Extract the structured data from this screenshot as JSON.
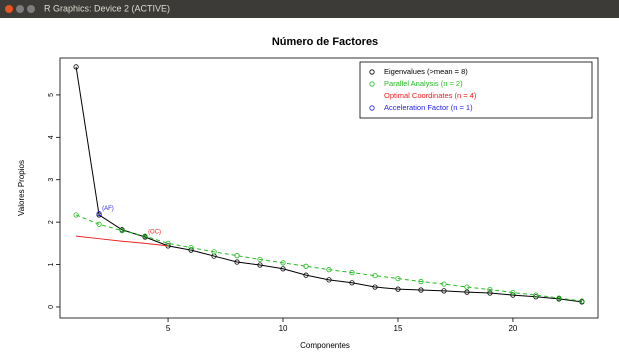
{
  "window_title": "R Graphics: Device 2 (ACTIVE)",
  "chart_data": {
    "type": "line",
    "title": "Número de Factores",
    "xlabel": "Componentes",
    "ylabel": "Valores Propios",
    "x": [
      1,
      2,
      3,
      4,
      5,
      6,
      7,
      8,
      9,
      10,
      11,
      12,
      13,
      14,
      15,
      16,
      17,
      18,
      19,
      20,
      21,
      22,
      23
    ],
    "series": [
      {
        "name": "Eigenvalues (>mean = 8)",
        "color": "#000000",
        "linestyle": "solid",
        "marker": true,
        "values": [
          5.66,
          2.17,
          1.82,
          1.65,
          1.44,
          1.34,
          1.2,
          1.06,
          0.99,
          0.9,
          0.75,
          0.64,
          0.57,
          0.47,
          0.42,
          0.4,
          0.38,
          0.35,
          0.33,
          0.28,
          0.24,
          0.19,
          0.12
        ]
      },
      {
        "name": "Parallel Analysis (n = 2)",
        "color": "#22bb22",
        "linestyle": "dashed",
        "marker": true,
        "values": [
          2.17,
          1.95,
          1.8,
          1.67,
          1.5,
          1.4,
          1.3,
          1.21,
          1.12,
          1.04,
          0.96,
          0.88,
          0.81,
          0.74,
          0.67,
          0.6,
          0.54,
          0.47,
          0.41,
          0.34,
          0.28,
          0.21,
          0.14
        ]
      },
      {
        "name": "Optimal Coordinates (n = 4)",
        "color": "#ee2222",
        "linestyle": "solid",
        "marker": false,
        "values": [
          1.67,
          1.61,
          1.55,
          1.5,
          1.44,
          null,
          null,
          null,
          null,
          null,
          null,
          null,
          null,
          null,
          null,
          null,
          null,
          null,
          null,
          null,
          null,
          null,
          null
        ]
      },
      {
        "name": "Acceleration Factor (n = 1)",
        "color": "#2222ee",
        "linestyle": "solid",
        "marker": true,
        "values": [
          null,
          2.2,
          null,
          null,
          null,
          null,
          null,
          null,
          null,
          null,
          null,
          null,
          null,
          null,
          null,
          null,
          null,
          null,
          null,
          null,
          null,
          null,
          null
        ]
      }
    ],
    "annotations": [
      {
        "text": "(AF)",
        "x": 2,
        "y": 2.2,
        "color": "#2222ee"
      },
      {
        "text": "(OC)",
        "x": 4,
        "y": 1.65,
        "color": "#ee2222"
      }
    ],
    "xlim": [
      0.3,
      23.7
    ],
    "ylim": [
      -0.26,
      5.87
    ],
    "xticks": [
      5,
      10,
      15,
      20
    ],
    "yticks": [
      0,
      1,
      2,
      3,
      4,
      5
    ],
    "legend": "top-right"
  }
}
